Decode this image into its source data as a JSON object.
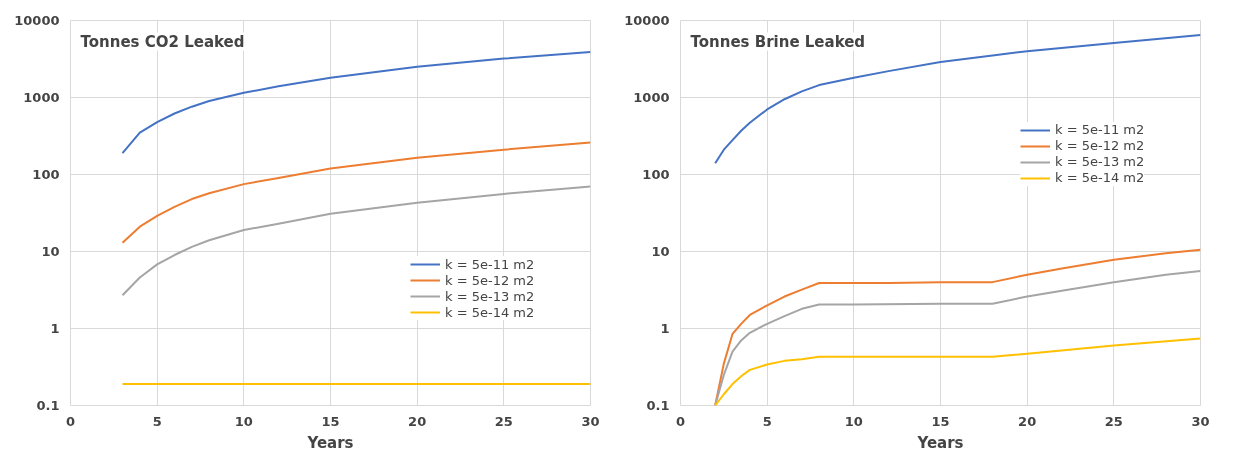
{
  "chart_data": [
    {
      "type": "line",
      "title": "Tonnes CO2 Leaked",
      "xlabel": "Years",
      "log": "y",
      "grid": true,
      "legend": "right",
      "xlim": [
        0,
        30
      ],
      "xticks": [
        0,
        5,
        10,
        15,
        20,
        25,
        30
      ],
      "ylim": [
        0.1,
        10000
      ],
      "yticks": [
        0.1,
        1,
        10,
        100,
        1000,
        10000
      ],
      "series": [
        {
          "name": "k = 5e-11 m2",
          "color": "#4472c4",
          "x": [
            3,
            4,
            5,
            6,
            7,
            8,
            10,
            12,
            15,
            20,
            25,
            30
          ],
          "values": [
            190,
            350,
            480,
            620,
            760,
            900,
            1150,
            1400,
            1800,
            2500,
            3200,
            3900
          ]
        },
        {
          "name": "k = 5e-12 m2",
          "color": "#ed7d31",
          "x": [
            3,
            4,
            5,
            6,
            7,
            8,
            10,
            12,
            15,
            20,
            25,
            30
          ],
          "values": [
            13,
            21,
            29,
            38,
            48,
            57,
            75,
            90,
            120,
            165,
            210,
            260
          ]
        },
        {
          "name": "k = 5e-13 m2",
          "color": "#a5a5a5",
          "x": [
            3,
            4,
            5,
            6,
            7,
            8,
            10,
            12,
            15,
            20,
            25,
            30
          ],
          "values": [
            2.7,
            4.6,
            6.8,
            9,
            11.5,
            14,
            19,
            23,
            31,
            43,
            56,
            70
          ]
        },
        {
          "name": "k = 5e-14 m2",
          "color": "#ffc000",
          "x": [
            3,
            30
          ],
          "values": [
            0.19,
            0.19
          ]
        }
      ]
    },
    {
      "type": "line",
      "title": "Tonnes Brine Leaked",
      "xlabel": "Years",
      "log": "y",
      "grid": true,
      "legend": "top right",
      "xlim": [
        0,
        30
      ],
      "xticks": [
        0,
        5,
        10,
        15,
        20,
        25,
        30
      ],
      "ylim": [
        0.1,
        10000
      ],
      "yticks": [
        0.1,
        1,
        10,
        100,
        1000,
        10000
      ],
      "series": [
        {
          "name": "k = 5e-11 m2",
          "color": "#4472c4",
          "x": [
            2,
            2.5,
            3,
            3.5,
            4,
            5,
            6,
            7,
            8,
            10,
            12,
            15,
            18,
            20,
            25,
            30
          ],
          "values": [
            140,
            210,
            280,
            370,
            470,
            700,
            950,
            1200,
            1450,
            1800,
            2200,
            2900,
            3500,
            4000,
            5100,
            6500
          ]
        },
        {
          "name": "k = 5e-12 m2",
          "color": "#ed7d31",
          "x": [
            2,
            2.5,
            3,
            3.5,
            4,
            5,
            6,
            7,
            8,
            10,
            12,
            15,
            18,
            20,
            22,
            25,
            28,
            30
          ],
          "values": [
            0.1,
            0.35,
            0.85,
            1.15,
            1.5,
            2.0,
            2.6,
            3.2,
            3.9,
            3.9,
            3.9,
            4.0,
            4.0,
            5.0,
            6.0,
            7.8,
            9.5,
            10.5
          ]
        },
        {
          "name": "k = 5e-13 m2",
          "color": "#a5a5a5",
          "x": [
            2,
            2.5,
            3,
            3.5,
            4,
            5,
            6,
            7,
            8,
            10,
            15,
            18,
            20,
            22,
            25,
            28,
            30
          ],
          "values": [
            0.1,
            0.25,
            0.5,
            0.7,
            0.88,
            1.15,
            1.45,
            1.8,
            2.05,
            2.05,
            2.1,
            2.1,
            2.6,
            3.1,
            4.0,
            5.0,
            5.6
          ]
        },
        {
          "name": "k = 5e-14 m2",
          "color": "#ffc000",
          "x": [
            2,
            2.5,
            3,
            3.5,
            4,
            5,
            6,
            7,
            8,
            10,
            15,
            18,
            20,
            25,
            30
          ],
          "values": [
            0.1,
            0.14,
            0.19,
            0.24,
            0.29,
            0.34,
            0.38,
            0.4,
            0.43,
            0.43,
            0.43,
            0.43,
            0.47,
            0.6,
            0.74
          ]
        }
      ]
    }
  ]
}
